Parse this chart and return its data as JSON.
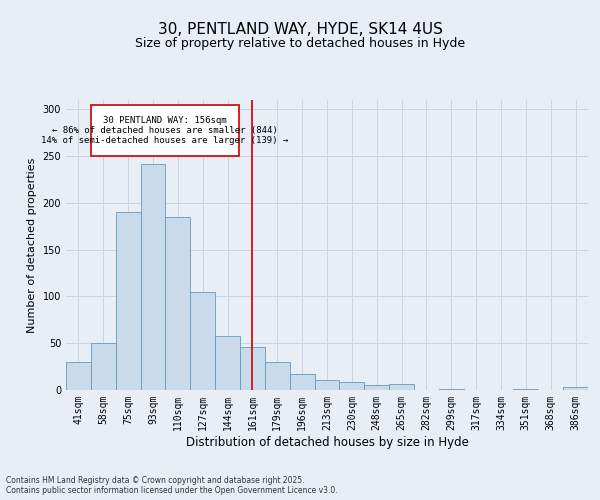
{
  "title1": "30, PENTLAND WAY, HYDE, SK14 4US",
  "title2": "Size of property relative to detached houses in Hyde",
  "xlabel": "Distribution of detached houses by size in Hyde",
  "ylabel": "Number of detached properties",
  "categories": [
    "41sqm",
    "58sqm",
    "75sqm",
    "93sqm",
    "110sqm",
    "127sqm",
    "144sqm",
    "161sqm",
    "179sqm",
    "196sqm",
    "213sqm",
    "230sqm",
    "248sqm",
    "265sqm",
    "282sqm",
    "299sqm",
    "317sqm",
    "334sqm",
    "351sqm",
    "368sqm",
    "386sqm"
  ],
  "values": [
    30,
    50,
    190,
    242,
    185,
    105,
    58,
    46,
    30,
    17,
    11,
    9,
    5,
    6,
    0,
    1,
    0,
    0,
    1,
    0,
    3
  ],
  "bar_color": "#c9daea",
  "bar_edge_color": "#6699bb",
  "vline_x": 7,
  "vline_color": "#cc0000",
  "annotation_text": "30 PENTLAND WAY: 156sqm\n← 86% of detached houses are smaller (844)\n14% of semi-detached houses are larger (139) →",
  "annotation_box_color": "#ffffff",
  "annotation_box_edge": "#cc0000",
  "grid_color": "#c8d4e4",
  "background_color": "#e8eef6",
  "ylim": [
    0,
    310
  ],
  "yticks": [
    0,
    50,
    100,
    150,
    200,
    250,
    300
  ],
  "footer_line1": "Contains HM Land Registry data © Crown copyright and database right 2025.",
  "footer_line2": "Contains public sector information licensed under the Open Government Licence v3.0.",
  "title1_fontsize": 11,
  "title2_fontsize": 9,
  "xlabel_fontsize": 8.5,
  "ylabel_fontsize": 8,
  "tick_fontsize": 7,
  "footer_fontsize": 5.5
}
